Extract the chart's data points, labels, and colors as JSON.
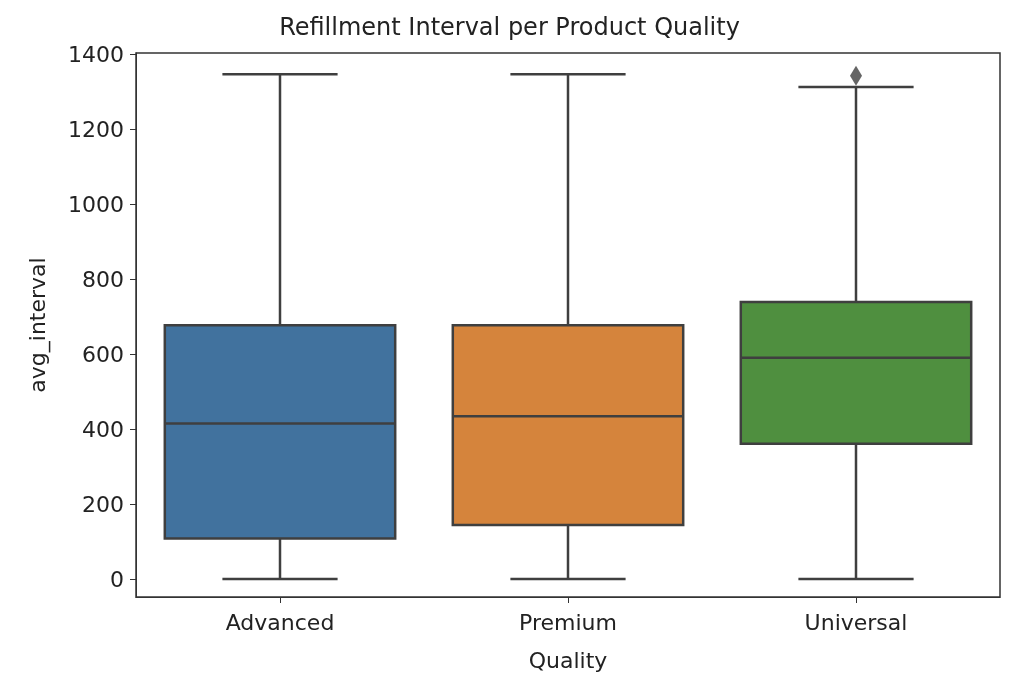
{
  "chart_data": {
    "type": "box",
    "title": "Refillment Interval per Product Quality",
    "xlabel": "Quality",
    "ylabel": "avg_interval",
    "categories": [
      "Advanced",
      "Premium",
      "Universal"
    ],
    "boxes": [
      {
        "low": 0,
        "q1": 108,
        "median": 415,
        "q3": 677,
        "high": 1346
      },
      {
        "low": 0,
        "q1": 144,
        "median": 434,
        "q3": 677,
        "high": 1346
      },
      {
        "low": 0,
        "q1": 361,
        "median": 590,
        "q3": 739,
        "high": 1312,
        "outliers": [
          1342
        ]
      }
    ],
    "colors": [
      "#41729e",
      "#d5843c",
      "#4f8f3f"
    ],
    "ylim": [
      -48,
      1403
    ],
    "yticks": [
      0,
      200,
      400,
      600,
      800,
      1000,
      1200,
      1400
    ],
    "grid": false,
    "marker": "diamond"
  }
}
